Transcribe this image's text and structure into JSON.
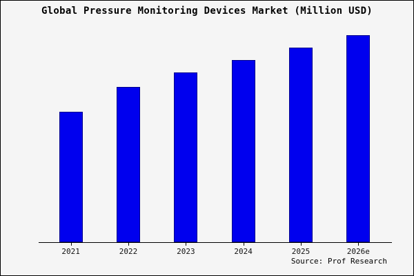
{
  "source": "Source: Prof Research",
  "colors": {
    "bar_fill": "#0000ee",
    "bar_edge": "#00008b",
    "background": "#f5f5f5",
    "frame": "#000000",
    "axis": "#000000"
  },
  "chart_data": {
    "type": "bar",
    "title": "Global Pressure Monitoring Devices Market (Million USD)",
    "categories": [
      "2021",
      "2022",
      "2023",
      "2024",
      "2025",
      "2026e"
    ],
    "values": [
      63,
      75,
      82,
      88,
      94,
      100
    ],
    "xlabel": "",
    "ylabel": "",
    "ylim": [
      0,
      105
    ],
    "grid": false,
    "legend": false,
    "y_axis_visible": false,
    "annotation": "Source: Prof Research"
  }
}
